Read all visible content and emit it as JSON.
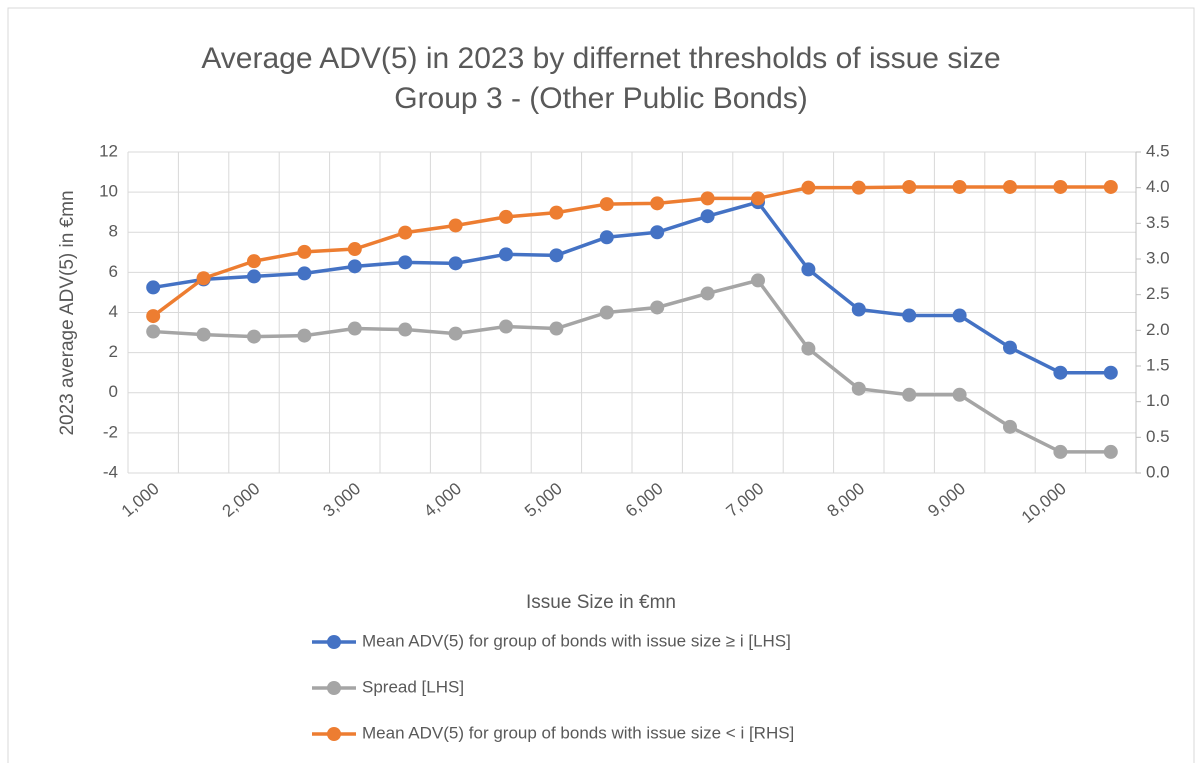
{
  "chart_data": {
    "type": "line",
    "title": "Average ADV(5) in 2023 by differnet thresholds of issue size",
    "subtitle": "Group 3 -  (Other Public Bonds)",
    "x_label": "Issue Size in €mn",
    "y_label": "2023 average ADV(5) in €mn",
    "categories": [
      "1,000",
      null,
      "2,000",
      null,
      "3,000",
      null,
      "4,000",
      null,
      "5,000",
      null,
      "6,000",
      null,
      "7,000",
      null,
      "8,000",
      null,
      "9,000",
      null,
      "10,000",
      null
    ],
    "series": [
      {
        "name": "Mean ADV(5) for group of bonds with issue size ≥ i [LHS]",
        "color": "#4472c4",
        "values": [
          5.25,
          5.65,
          5.8,
          5.95,
          6.3,
          6.5,
          6.45,
          6.9,
          6.85,
          7.75,
          8.0,
          8.8,
          9.5,
          6.15,
          4.15,
          3.85,
          3.85,
          2.25,
          1.0,
          1.0
        ]
      },
      {
        "name": "Spread [LHS]",
        "color": "#a5a5a5",
        "values": [
          3.05,
          2.9,
          2.8,
          2.85,
          3.2,
          3.15,
          2.95,
          3.3,
          3.2,
          4.0,
          4.25,
          4.95,
          5.6,
          2.2,
          0.2,
          -0.1,
          -0.1,
          -1.7,
          -2.95,
          -2.95
        ]
      },
      {
        "name": "Mean ADV(5) for group of bonds with issue size < i [RHS]",
        "color": "#ed7d31",
        "axis": "y2",
        "values": [
          2.2,
          2.73,
          2.97,
          3.1,
          3.14,
          3.37,
          3.47,
          3.59,
          3.65,
          3.77,
          3.78,
          3.85,
          3.85,
          4.0,
          4.0,
          4.01,
          4.01,
          4.01,
          4.01,
          4.01
        ]
      }
    ],
    "ylim": [
      -4,
      12
    ],
    "yticks": [
      -4,
      -2,
      0,
      2,
      4,
      6,
      8,
      10,
      12
    ],
    "y2lim": [
      0,
      4.5
    ],
    "y2ticks": [
      {
        "value": 0,
        "label": "0.0"
      },
      {
        "value": 0.5,
        "label": "0.5"
      },
      {
        "value": 1,
        "label": "1.0"
      },
      {
        "value": 1.5,
        "label": "1.5"
      },
      {
        "value": 2,
        "label": "2.0"
      },
      {
        "value": 2.5,
        "label": "2.5"
      },
      {
        "value": 3,
        "label": "3.0"
      },
      {
        "value": 3.5,
        "label": "3.5"
      },
      {
        "value": 4,
        "label": "4.0"
      },
      {
        "value": 4.5,
        "label": "4.5"
      }
    ],
    "grid": true,
    "legend": "bottom"
  }
}
